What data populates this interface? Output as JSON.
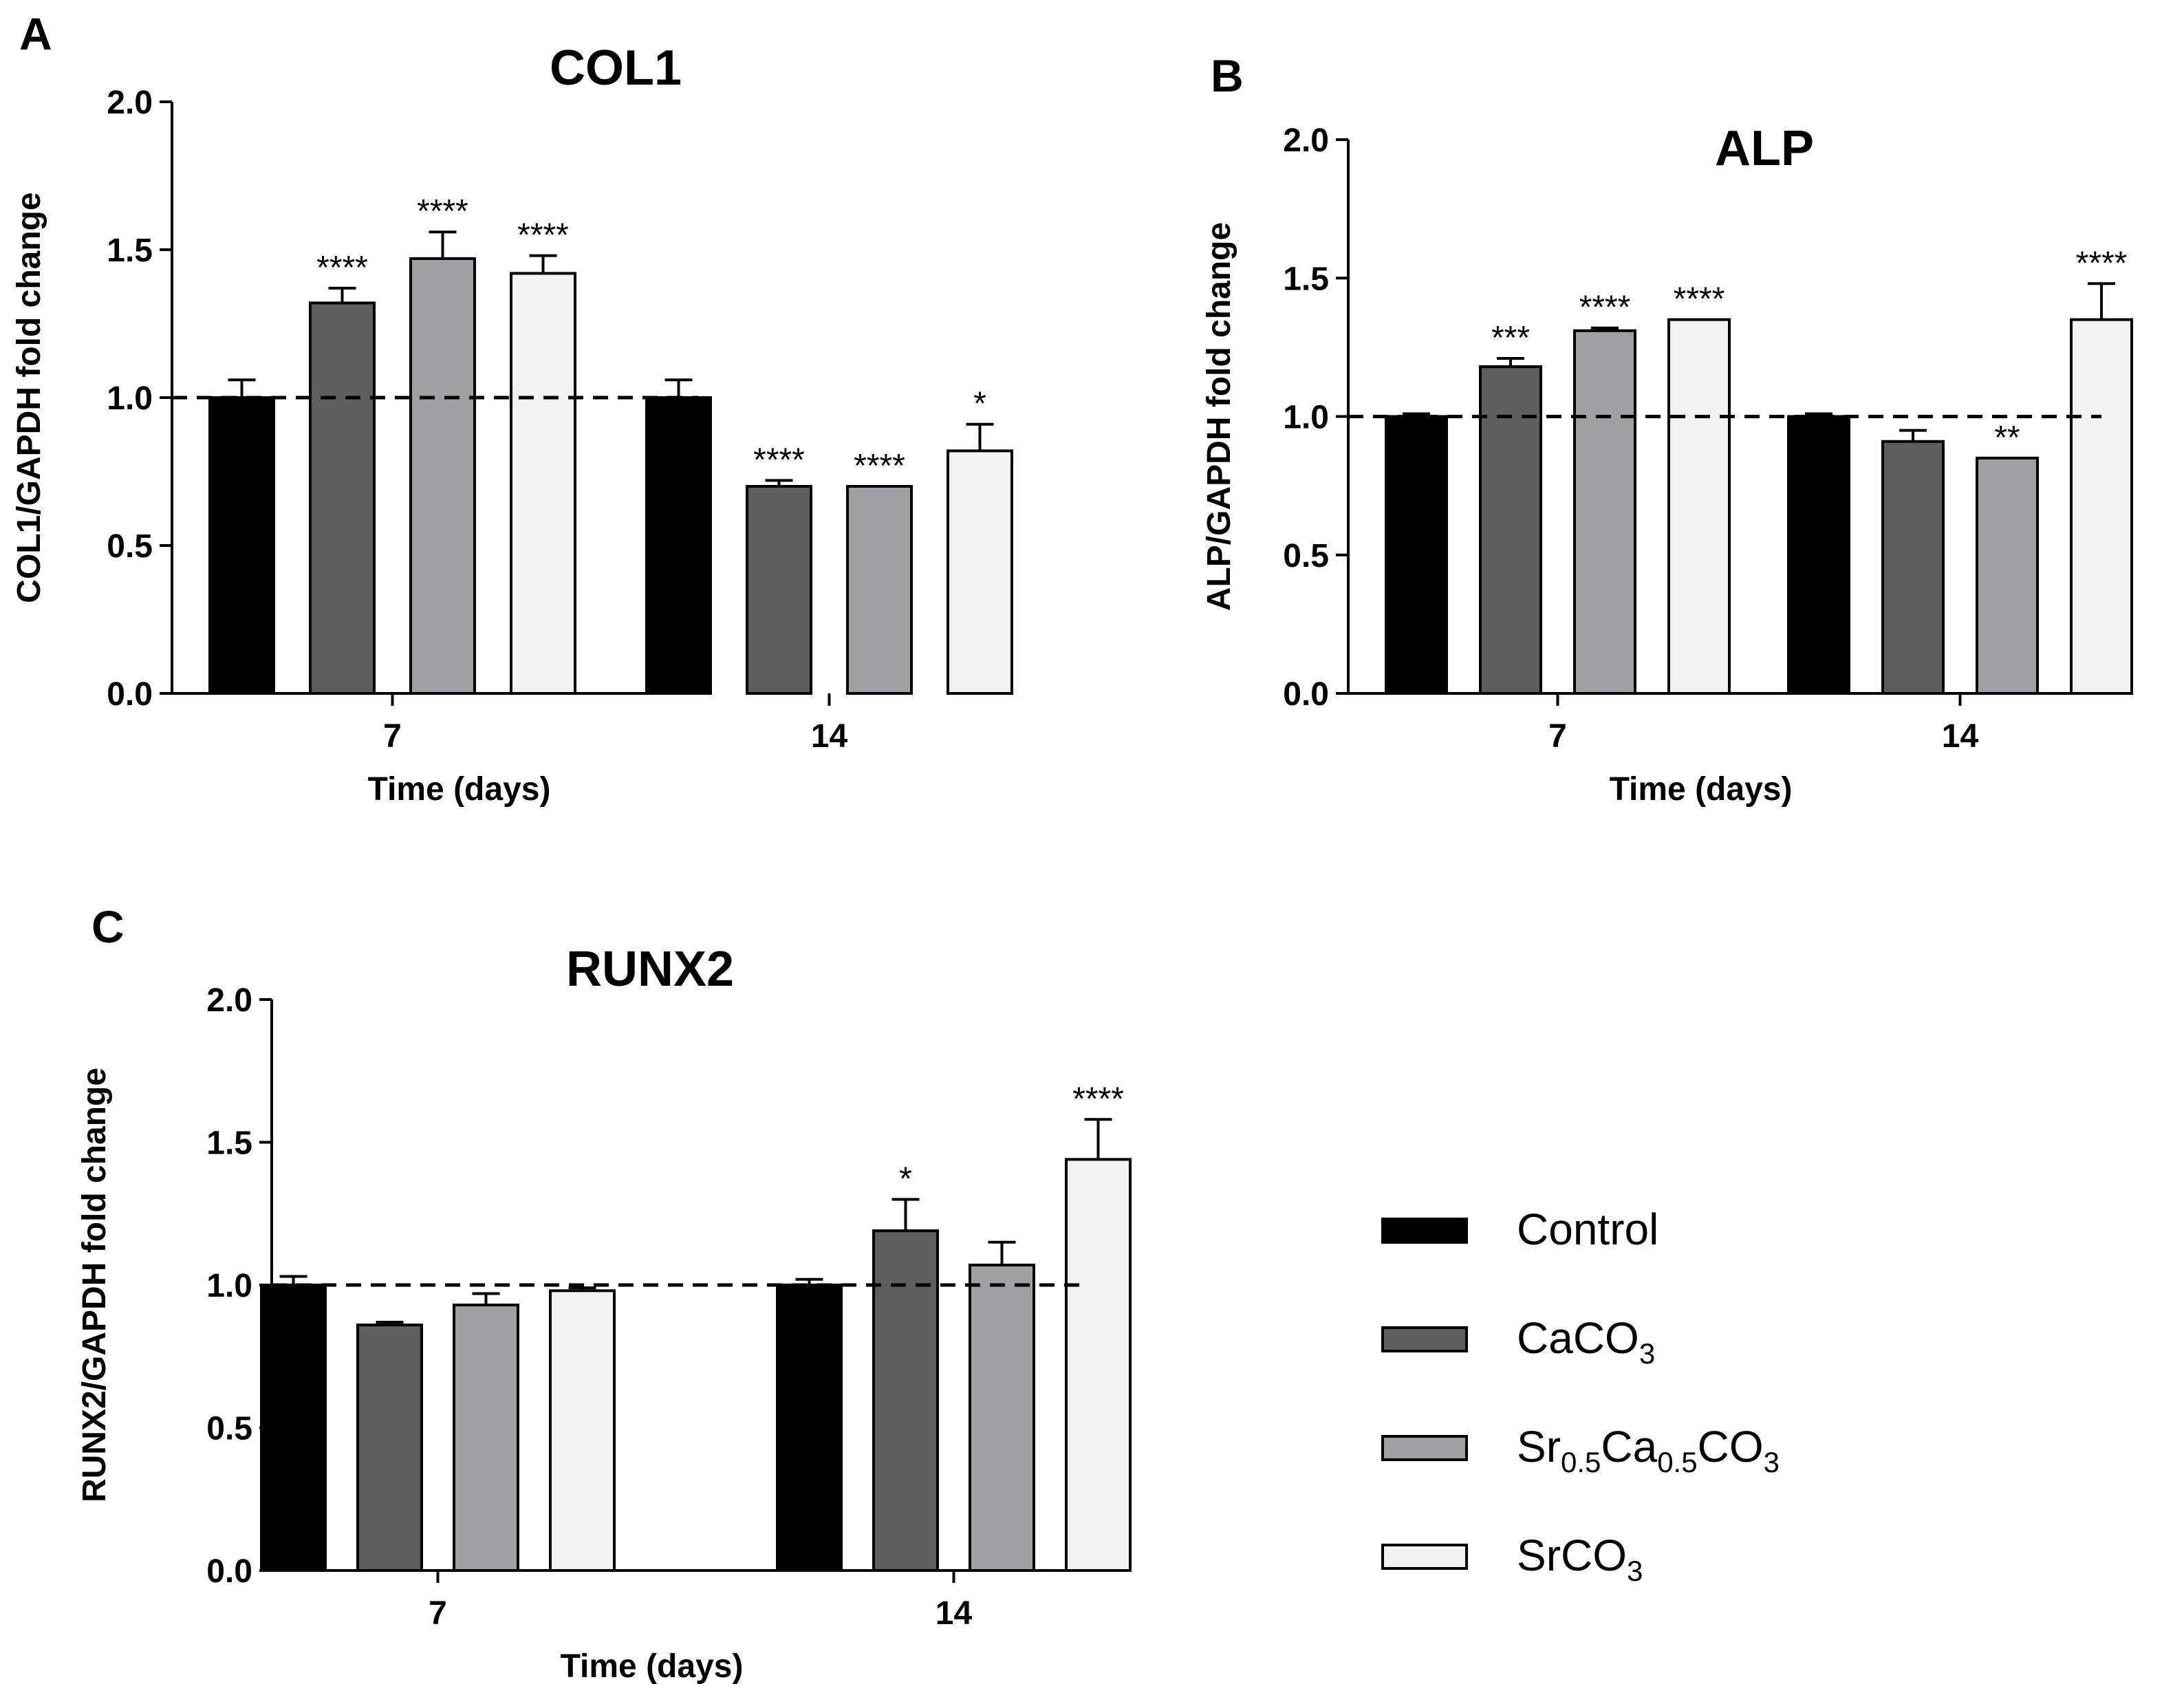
{
  "legend": {
    "series": [
      {
        "name": "Control",
        "color": "#000000",
        "parts": [
          {
            "t": "Control",
            "sub": false
          }
        ]
      },
      {
        "name": "CaCO3",
        "color": "#5e5e5e",
        "parts": [
          {
            "t": "CaCO",
            "sub": false
          },
          {
            "t": "3",
            "sub": true
          }
        ]
      },
      {
        "name": "Sr0.5Ca0.5CO3",
        "color": "#a0a0a4",
        "parts": [
          {
            "t": "Sr",
            "sub": false
          },
          {
            "t": "0.5",
            "sub": true
          },
          {
            "t": "Ca",
            "sub": false
          },
          {
            "t": "0.5",
            "sub": true
          },
          {
            "t": "CO",
            "sub": false
          },
          {
            "t": "3",
            "sub": true
          }
        ]
      },
      {
        "name": "SrCO3",
        "color": "#f1f1f1",
        "parts": [
          {
            "t": "SrCO",
            "sub": false
          },
          {
            "t": "3",
            "sub": true
          }
        ]
      }
    ]
  },
  "chart_data": [
    {
      "panel": "A",
      "type": "bar",
      "title": "COL1",
      "xlabel": "Time (days)",
      "ylabel": "COL1/GAPDH fold change",
      "ylim": [
        0,
        2.0
      ],
      "yticks": [
        "0.0",
        "0.5",
        "1.0",
        "1.5",
        "2.0"
      ],
      "reference_line": 1.0,
      "categories": [
        "7",
        "14"
      ],
      "series": [
        {
          "name": "Control",
          "values": [
            1.0,
            1.0
          ],
          "errors": [
            0.06,
            0.06
          ],
          "sig": [
            "",
            ""
          ]
        },
        {
          "name": "CaCO3",
          "values": [
            1.32,
            0.7
          ],
          "errors": [
            0.05,
            0.02
          ],
          "sig": [
            "****",
            "****"
          ]
        },
        {
          "name": "Sr0.5Ca0.5CO3",
          "values": [
            1.47,
            0.7
          ],
          "errors": [
            0.09,
            0.0
          ],
          "sig": [
            "****",
            "****"
          ]
        },
        {
          "name": "SrCO3",
          "values": [
            1.42,
            0.82
          ],
          "errors": [
            0.06,
            0.09
          ],
          "sig": [
            "****",
            "*"
          ]
        }
      ]
    },
    {
      "panel": "B",
      "type": "bar",
      "title": "ALP",
      "xlabel": "Time (days)",
      "ylabel": "ALP/GAPDH fold change",
      "ylim": [
        0,
        2.0
      ],
      "yticks": [
        "0.0",
        "0.5",
        "1.0",
        "1.5",
        "2.0"
      ],
      "reference_line": 1.0,
      "categories": [
        "7",
        "14"
      ],
      "series": [
        {
          "name": "Control",
          "values": [
            1.0,
            1.0
          ],
          "errors": [
            0.01,
            0.01
          ],
          "sig": [
            "",
            ""
          ]
        },
        {
          "name": "CaCO3",
          "values": [
            1.18,
            0.91
          ],
          "errors": [
            0.03,
            0.04
          ],
          "sig": [
            "***",
            ""
          ]
        },
        {
          "name": "Sr0.5Ca0.5CO3",
          "values": [
            1.31,
            0.85
          ],
          "errors": [
            0.01,
            0.0
          ],
          "sig": [
            "****",
            "**"
          ]
        },
        {
          "name": "SrCO3",
          "values": [
            1.35,
            1.35
          ],
          "errors": [
            0.0,
            0.13
          ],
          "sig": [
            "****",
            "****"
          ]
        }
      ]
    },
    {
      "panel": "C",
      "type": "bar",
      "title": "RUNX2",
      "xlabel": "Time (days)",
      "ylabel": "RUNX2/GAPDH fold change",
      "ylim": [
        0,
        2.0
      ],
      "yticks": [
        "0.0",
        "0.5",
        "1.0",
        "1.5",
        "2.0"
      ],
      "reference_line": 1.0,
      "categories": [
        "7",
        "14"
      ],
      "series": [
        {
          "name": "Control",
          "values": [
            1.0,
            1.0
          ],
          "errors": [
            0.03,
            0.02
          ],
          "sig": [
            "",
            ""
          ]
        },
        {
          "name": "CaCO3",
          "values": [
            0.86,
            1.19
          ],
          "errors": [
            0.01,
            0.11
          ],
          "sig": [
            "",
            "*"
          ]
        },
        {
          "name": "Sr0.5Ca0.5CO3",
          "values": [
            0.93,
            1.07
          ],
          "errors": [
            0.04,
            0.08
          ],
          "sig": [
            "",
            ""
          ]
        },
        {
          "name": "SrCO3",
          "values": [
            0.98,
            1.44
          ],
          "errors": [
            0.01,
            0.14
          ],
          "sig": [
            "",
            "****"
          ]
        }
      ]
    }
  ]
}
